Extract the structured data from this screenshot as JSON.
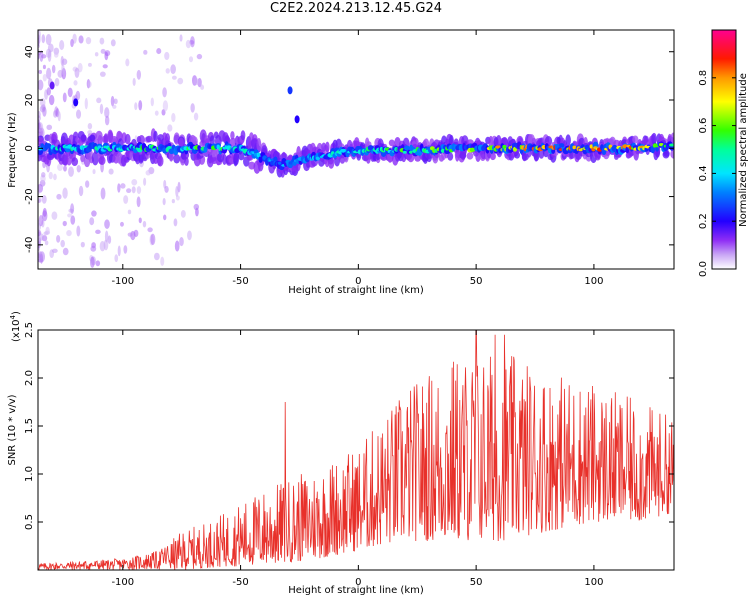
{
  "title": "C2E2.2024.213.12.45.G24",
  "chart_data": [
    {
      "type": "heatmap",
      "xlabel": "Height of straight line (km)",
      "ylabel": "Frequency (Hz)",
      "xlim": [
        -136,
        134
      ],
      "ylim": [
        -50,
        49
      ],
      "xticks": [
        -100,
        -50,
        0,
        50,
        100
      ],
      "yticks": [
        40,
        20,
        0,
        -20,
        -40
      ],
      "colorbar": {
        "label": "Normalized spectral amplitude",
        "range": [
          0,
          1
        ],
        "ticks": [
          0.0,
          0.2,
          0.4,
          0.6,
          0.8
        ],
        "colormap": "rainbow (white-violet-blue-cyan-green-yellow-red-magenta)"
      },
      "ridge": [
        {
          "x": -135,
          "y": 0,
          "amp": 0.45
        },
        {
          "x": -110,
          "y": 0,
          "amp": 0.5
        },
        {
          "x": -90,
          "y": 0,
          "amp": 0.55
        },
        {
          "x": -70,
          "y": 0,
          "amp": 0.55
        },
        {
          "x": -50,
          "y": 0,
          "amp": 0.5
        },
        {
          "x": -40,
          "y": -4,
          "amp": 0.35
        },
        {
          "x": -32,
          "y": -7,
          "amp": 0.35
        },
        {
          "x": -25,
          "y": -5,
          "amp": 0.35
        },
        {
          "x": -10,
          "y": -2,
          "amp": 0.45
        },
        {
          "x": 0,
          "y": -1,
          "amp": 0.5
        },
        {
          "x": 20,
          "y": -1,
          "amp": 0.55
        },
        {
          "x": 50,
          "y": 0,
          "amp": 0.7
        },
        {
          "x": 80,
          "y": 0,
          "amp": 0.85
        },
        {
          "x": 110,
          "y": 0,
          "amp": 0.85
        },
        {
          "x": 134,
          "y": 1,
          "amp": 0.6
        }
      ],
      "spots": [
        {
          "x": -29,
          "y": 24,
          "amp": 0.25
        },
        {
          "x": -26,
          "y": 12,
          "amp": 0.2
        },
        {
          "x": -120,
          "y": 19,
          "amp": 0.2
        },
        {
          "x": -130,
          "y": 26,
          "amp": 0.15
        }
      ]
    },
    {
      "type": "line",
      "xlabel": "Height of straight line (km)",
      "ylabel": "SNR (10 * v/v)",
      "yscale_label": "(x10",
      "yscale_exp": "4",
      "xlim": [
        -136,
        134
      ],
      "ylim": [
        0,
        2.5
      ],
      "xticks": [
        -100,
        -50,
        0,
        50,
        100
      ],
      "yticks": [
        0.5,
        1.0,
        1.5,
        2.0,
        2.5
      ],
      "color": "#e8302a",
      "envelope": [
        {
          "x": -136,
          "low": 0.0,
          "high": 0.07
        },
        {
          "x": -100,
          "low": 0.0,
          "high": 0.12
        },
        {
          "x": -85,
          "low": 0.0,
          "high": 0.2
        },
        {
          "x": -75,
          "low": 0.0,
          "high": 0.4
        },
        {
          "x": -60,
          "low": 0.03,
          "high": 0.55
        },
        {
          "x": -40,
          "low": 0.05,
          "high": 0.85
        },
        {
          "x": -20,
          "low": 0.1,
          "high": 1.05
        },
        {
          "x": 0,
          "low": 0.2,
          "high": 1.3
        },
        {
          "x": 20,
          "low": 0.3,
          "high": 1.9
        },
        {
          "x": 40,
          "low": 0.3,
          "high": 2.25
        },
        {
          "x": 60,
          "low": 0.3,
          "high": 2.3
        },
        {
          "x": 80,
          "low": 0.4,
          "high": 2.1
        },
        {
          "x": 100,
          "low": 0.5,
          "high": 1.95
        },
        {
          "x": 120,
          "low": 0.5,
          "high": 1.75
        },
        {
          "x": 134,
          "low": 0.6,
          "high": 1.6
        }
      ],
      "peaks": [
        {
          "x": -31,
          "y": 1.75
        },
        {
          "x": 50,
          "y": 2.5
        },
        {
          "x": 58,
          "y": 2.45
        },
        {
          "x": 62,
          "y": 2.45
        }
      ]
    }
  ]
}
